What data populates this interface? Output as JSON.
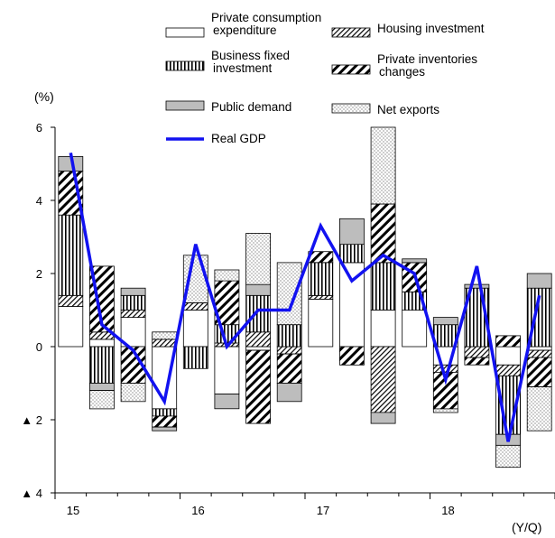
{
  "chart_data": {
    "type": "bar",
    "stacked": true,
    "ylabel": "(%)",
    "xlabel": "(Y/Q)",
    "ylim": [
      -4,
      6
    ],
    "y_ticks": [
      {
        "value": 6,
        "label": "6"
      },
      {
        "value": 4,
        "label": "4"
      },
      {
        "value": 2,
        "label": "2"
      },
      {
        "value": 0,
        "label": "0"
      },
      {
        "value": -2,
        "label": "▲ 2"
      },
      {
        "value": -4,
        "label": "▲ 4"
      }
    ],
    "x_labels": [
      {
        "index": 0,
        "label": "15"
      },
      {
        "index": 4,
        "label": "16"
      },
      {
        "index": 8,
        "label": "17"
      },
      {
        "index": 12,
        "label": "18"
      }
    ],
    "categories": [
      "15Q1",
      "15Q2",
      "15Q3",
      "15Q4",
      "16Q1",
      "16Q2",
      "16Q3",
      "16Q4",
      "17Q1",
      "17Q2",
      "17Q3",
      "17Q4",
      "18Q1",
      "18Q2",
      "18Q3",
      "18Q4"
    ],
    "legend": [
      {
        "key": "pce",
        "lines": [
          "Private consumption",
          "expenditure"
        ]
      },
      {
        "key": "housing",
        "lines": [
          "Housing investment"
        ]
      },
      {
        "key": "bfi",
        "lines": [
          "Business fixed",
          "investment"
        ]
      },
      {
        "key": "inventories",
        "lines": [
          "Private inventories",
          "changes"
        ]
      },
      {
        "key": "public",
        "lines": [
          "Public demand"
        ]
      },
      {
        "key": "netexports",
        "lines": [
          "Net exports"
        ]
      },
      {
        "key": "gdp",
        "lines": [
          "Real GDP"
        ]
      }
    ],
    "series": [
      {
        "key": "pce",
        "name": "Private consumption expenditure",
        "pattern": "white",
        "values": [
          1.1,
          0.2,
          0.8,
          -1.7,
          1.0,
          -1.3,
          -0.1,
          0.0,
          1.3,
          2.3,
          1.0,
          1.0,
          -0.5,
          0.0,
          -0.5,
          -0.1
        ]
      },
      {
        "key": "housing",
        "name": "Housing investment",
        "pattern": "diagonal-thin",
        "values": [
          0.3,
          0.2,
          0.2,
          0.2,
          0.2,
          0.1,
          0.4,
          -0.2,
          0.1,
          0.0,
          -1.8,
          0.0,
          -0.2,
          -0.3,
          -0.3,
          -0.2
        ]
      },
      {
        "key": "bfi",
        "name": "Business fixed investment",
        "pattern": "vertical",
        "values": [
          2.2,
          -1.0,
          0.4,
          -0.2,
          -0.6,
          0.5,
          1.0,
          0.6,
          0.9,
          0.5,
          1.3,
          0.5,
          0.6,
          1.6,
          -1.6,
          1.6
        ]
      },
      {
        "key": "inventories",
        "name": "Private inventories changes",
        "pattern": "diagonal-thick",
        "values": [
          1.2,
          1.8,
          -1.0,
          -0.3,
          0.0,
          1.2,
          -2.0,
          -0.8,
          0.3,
          -0.5,
          1.6,
          0.8,
          -1.0,
          -0.2,
          0.3,
          -0.8
        ]
      },
      {
        "key": "public",
        "name": "Public demand",
        "pattern": "gray",
        "values": [
          0.4,
          -0.2,
          0.2,
          -0.1,
          0.0,
          -0.4,
          0.3,
          -0.5,
          0.0,
          0.7,
          -0.3,
          0.1,
          0.2,
          0.1,
          -0.3,
          0.4
        ]
      },
      {
        "key": "netexports",
        "name": "Net exports",
        "pattern": "dots",
        "values": [
          0.0,
          -0.5,
          -0.5,
          0.2,
          1.3,
          0.3,
          1.4,
          1.7,
          0.0,
          0.0,
          2.1,
          0.0,
          -0.1,
          0.0,
          -0.6,
          -1.2
        ]
      }
    ],
    "line": {
      "key": "gdp",
      "name": "Real GDP",
      "values": [
        5.3,
        0.6,
        -0.1,
        -1.5,
        2.8,
        0.0,
        1.0,
        1.0,
        3.3,
        1.8,
        2.5,
        2.0,
        -0.9,
        2.2,
        -2.6,
        1.4
      ]
    }
  }
}
